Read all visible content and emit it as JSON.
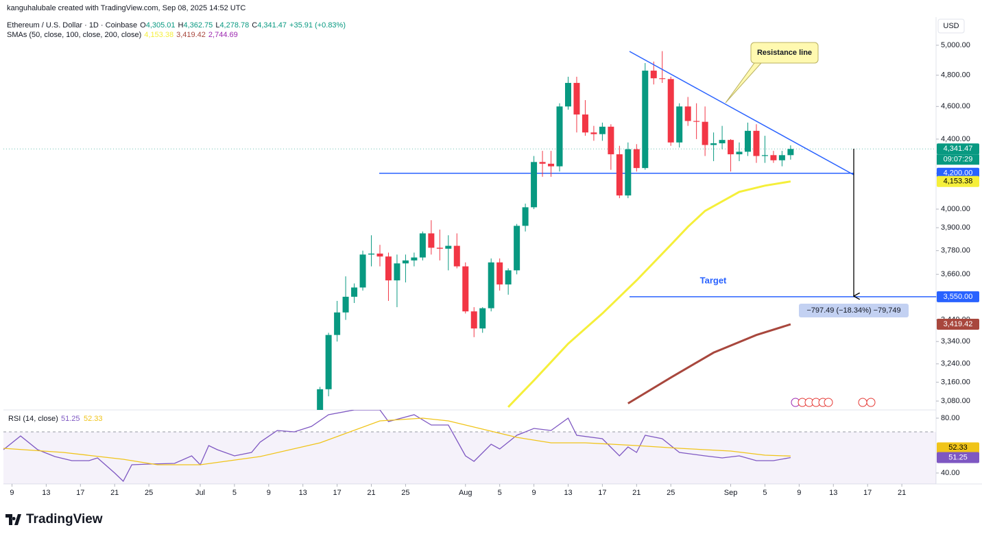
{
  "header": {
    "credit": "kanguhalubale created with TradingView.com, Sep 08, 2025 14:52 UTC",
    "symbol": "Ethereum / U.S. Dollar · 1D · Coinbase",
    "ohlc": [
      {
        "key": "O",
        "value": "4,305.01"
      },
      {
        "key": "H",
        "value": "4,362.75"
      },
      {
        "key": "L",
        "value": "4,278.78"
      },
      {
        "key": "C",
        "value": "4,341.47"
      }
    ],
    "change": "+35.91 (+0.83%)",
    "sma_legend": "SMAs (50, close, 100, close, 200, close)",
    "sma200": "2,744.69",
    "sma200_color": "#9c27b0",
    "currency": "USD"
  },
  "annotations": {
    "resistance": "Resistance line",
    "target": "Target",
    "measure": "−797.49 (−18.34%) −79,749",
    "countdown": "09:07:29"
  },
  "logo": "TradingView",
  "chart_data": [
    {
      "type": "candlestick",
      "log_scale": true,
      "up_color": "#089981",
      "down_color": "#f23645",
      "x": [
        "07-15",
        "07-16",
        "07-17",
        "07-18",
        "07-19",
        "07-20",
        "07-21",
        "07-22",
        "07-23",
        "07-24",
        "07-25",
        "07-26",
        "07-27",
        "07-28",
        "07-29",
        "07-30",
        "07-31",
        "08-01",
        "08-02",
        "08-03",
        "08-04",
        "08-05",
        "08-06",
        "08-07",
        "08-08",
        "08-09",
        "08-10",
        "08-11",
        "08-12",
        "08-13",
        "08-14",
        "08-15",
        "08-16",
        "08-17",
        "08-18",
        "08-19",
        "08-20",
        "08-21",
        "08-22",
        "08-23",
        "08-24",
        "08-25",
        "08-26",
        "08-27",
        "08-28",
        "08-29",
        "08-30",
        "08-31",
        "09-01",
        "09-02",
        "09-03",
        "09-04",
        "09-05",
        "09-06",
        "09-07",
        "09-08"
      ],
      "open": [
        3010,
        3130,
        3370,
        3475,
        3550,
        3595,
        3760,
        3765,
        3750,
        3630,
        3715,
        3730,
        3745,
        3870,
        3795,
        3790,
        3805,
        3700,
        3480,
        3400,
        3495,
        3720,
        3610,
        3680,
        3910,
        4010,
        4265,
        4255,
        4240,
        4600,
        4750,
        4550,
        4440,
        4430,
        4475,
        4310,
        4075,
        4340,
        4230,
        4830,
        4780,
        4775,
        4380,
        4600,
        4510,
        4505,
        4365,
        4375,
        4395,
        4310,
        4325,
        4450,
        4300,
        4305,
        4275,
        4305.01
      ],
      "high": [
        3140,
        3380,
        3530,
        3650,
        3615,
        3780,
        3860,
        3810,
        3770,
        3760,
        3760,
        3770,
        3880,
        3940,
        3890,
        3860,
        3870,
        3720,
        3500,
        3500,
        3740,
        3740,
        3690,
        3920,
        4030,
        4300,
        4330,
        4330,
        4620,
        4790,
        4790,
        4640,
        4480,
        4500,
        4490,
        4360,
        4380,
        4370,
        4880,
        4890,
        4960,
        4790,
        4620,
        4660,
        4620,
        4600,
        4440,
        4480,
        4400,
        4380,
        4500,
        4490,
        4420,
        4330,
        4330,
        4362.75
      ],
      "low": [
        2990,
        3100,
        3340,
        3440,
        3520,
        3580,
        3700,
        3700,
        3530,
        3500,
        3620,
        3700,
        3730,
        3760,
        3730,
        3680,
        3690,
        3470,
        3360,
        3380,
        3480,
        3580,
        3560,
        3660,
        3880,
        4000,
        4180,
        4180,
        4210,
        4580,
        4440,
        4420,
        4390,
        4390,
        4220,
        4060,
        4060,
        4210,
        4220,
        4740,
        4750,
        4360,
        4350,
        4480,
        4400,
        4300,
        4270,
        4340,
        4210,
        4270,
        4300,
        4260,
        4260,
        4260,
        4240,
        4278.78
      ],
      "close": [
        3130,
        3370,
        3475,
        3550,
        3595,
        3760,
        3765,
        3750,
        3630,
        3715,
        3730,
        3745,
        3870,
        3795,
        3790,
        3805,
        3700,
        3480,
        3400,
        3495,
        3720,
        3610,
        3680,
        3910,
        4010,
        4265,
        4255,
        4240,
        4600,
        4750,
        4550,
        4440,
        4430,
        4475,
        4310,
        4075,
        4340,
        4230,
        4830,
        4780,
        4775,
        4380,
        4600,
        4510,
        4505,
        4365,
        4375,
        4395,
        4310,
        4325,
        4450,
        4300,
        4305,
        4275,
        4305,
        4341.47
      ],
      "last_label": "4,341.47",
      "series": [
        {
          "color": "#f5ef3a",
          "label": "4,153.38",
          "x": [
            "08-06",
            "08-09",
            "08-13",
            "08-17",
            "08-21",
            "08-25",
            "08-27",
            "08-29",
            "09-02",
            "09-05",
            "09-08"
          ],
          "values": [
            3055,
            3168,
            3330,
            3470,
            3630,
            3810,
            3905,
            3990,
            4095,
            4130,
            4153.38
          ]
        },
        {
          "color": "#a8473d",
          "label": "3,419.42",
          "x": [
            "08-20",
            "08-25",
            "08-30",
            "09-04",
            "09-08"
          ],
          "values": [
            3070,
            3180,
            3290,
            3370,
            3419.42
          ]
        }
      ],
      "levels": [
        {
          "value": 4200,
          "label": "4,200.00",
          "color": "#2962ff"
        },
        {
          "value": 3550,
          "label": "3,550.00",
          "color": "#2962ff"
        }
      ],
      "ylim": [
        3043,
        5195
      ],
      "yticks": [
        {
          "value": 3080,
          "label": "3,080.00"
        },
        {
          "value": 3160,
          "label": "3,160.00"
        },
        {
          "value": 3240,
          "label": "3,240.00"
        },
        {
          "value": 3340,
          "label": "3,340.00"
        },
        {
          "value": 3440,
          "label": "3,440.00"
        },
        {
          "value": 3550,
          "label": "3,550.00"
        },
        {
          "value": 3660,
          "label": "3,660.00"
        },
        {
          "value": 3780,
          "label": "3,780.00"
        },
        {
          "value": 3900,
          "label": "3,900.00"
        },
        {
          "value": 4000,
          "label": "4,000.00"
        },
        {
          "value": 4200,
          "label": "4,200.00"
        },
        {
          "value": 4400,
          "label": "4,400.00"
        },
        {
          "value": 4600,
          "label": "4,600.00"
        },
        {
          "value": 4800,
          "label": "4,800.00"
        },
        {
          "value": 5000,
          "label": "5,000.00"
        }
      ],
      "xlim": [
        "06-08",
        "09-25"
      ],
      "xticks": [
        {
          "value": "06-09",
          "label": "9"
        },
        {
          "value": "06-13",
          "label": "13"
        },
        {
          "value": "06-17",
          "label": "17"
        },
        {
          "value": "06-21",
          "label": "21"
        },
        {
          "value": "06-25",
          "label": "25"
        },
        {
          "value": "07-01",
          "label": "Jul"
        },
        {
          "value": "07-05",
          "label": "5"
        },
        {
          "value": "07-09",
          "label": "9"
        },
        {
          "value": "07-13",
          "label": "13"
        },
        {
          "value": "07-17",
          "label": "17"
        },
        {
          "value": "07-21",
          "label": "21"
        },
        {
          "value": "07-25",
          "label": "25"
        },
        {
          "value": "08-01",
          "label": "Aug"
        },
        {
          "value": "08-05",
          "label": "5"
        },
        {
          "value": "08-09",
          "label": "9"
        },
        {
          "value": "08-13",
          "label": "13"
        },
        {
          "value": "08-17",
          "label": "17"
        },
        {
          "value": "08-21",
          "label": "21"
        },
        {
          "value": "08-25",
          "label": "25"
        },
        {
          "value": "09-01",
          "label": "Sep"
        },
        {
          "value": "09-05",
          "label": "5"
        },
        {
          "value": "09-09",
          "label": "9"
        },
        {
          "value": "09-13",
          "label": "13"
        },
        {
          "value": "09-17",
          "label": "17"
        },
        {
          "value": "09-21",
          "label": "21"
        }
      ]
    },
    {
      "type": "line",
      "title": "RSI (14, close)",
      "band": [
        30,
        70
      ],
      "series": [
        {
          "color": "#7e57c2",
          "label": "51.25",
          "x": [
            "06-08",
            "06-10",
            "06-12",
            "06-14",
            "06-16",
            "06-18",
            "06-19",
            "06-21",
            "06-22",
            "06-23",
            "06-25",
            "06-28",
            "06-30",
            "07-01",
            "07-02",
            "07-03",
            "07-05",
            "07-07",
            "07-08",
            "07-10",
            "07-12",
            "07-14",
            "07-16",
            "07-19",
            "07-22",
            "07-23",
            "07-26",
            "07-28",
            "07-30",
            "08-01",
            "08-02",
            "08-04",
            "08-05",
            "08-07",
            "08-09",
            "08-11",
            "08-13",
            "08-14",
            "08-17",
            "08-19",
            "08-20",
            "08-21",
            "08-22",
            "08-24",
            "08-26",
            "08-29",
            "08-31",
            "09-02",
            "09-04",
            "09-06",
            "09-08"
          ],
          "values": [
            57,
            67,
            57,
            52,
            49,
            49,
            51,
            40,
            34,
            46,
            46.5,
            47,
            52.5,
            46,
            60,
            57,
            52.5,
            55,
            62.5,
            71,
            70,
            74,
            82.5,
            86,
            86,
            77.5,
            82.5,
            75,
            75,
            52.5,
            48.5,
            61,
            57.5,
            67.5,
            72.5,
            71,
            80,
            67.5,
            65,
            52.5,
            59,
            55,
            67.5,
            65,
            55,
            52.5,
            51,
            52.5,
            49,
            49,
            51.25
          ]
        },
        {
          "color": "#f0c419",
          "label": "52.33",
          "x": [
            "06-08",
            "06-15",
            "06-22",
            "06-26",
            "07-01",
            "07-08",
            "07-15",
            "07-22",
            "07-27",
            "07-30",
            "08-03",
            "08-07",
            "08-11",
            "08-15",
            "08-21",
            "08-26",
            "09-01",
            "09-05",
            "09-08"
          ],
          "values": [
            58,
            55,
            50,
            46,
            46,
            52,
            62,
            78,
            80,
            78,
            72,
            66,
            62,
            62,
            60,
            58,
            56,
            53,
            52.33
          ]
        }
      ],
      "ylim": [
        32,
        86
      ],
      "yticks": [
        {
          "value": 40,
          "label": "40.00"
        },
        {
          "value": 80,
          "label": "80.00"
        }
      ],
      "xlim": [
        "06-08",
        "09-25"
      ]
    }
  ]
}
